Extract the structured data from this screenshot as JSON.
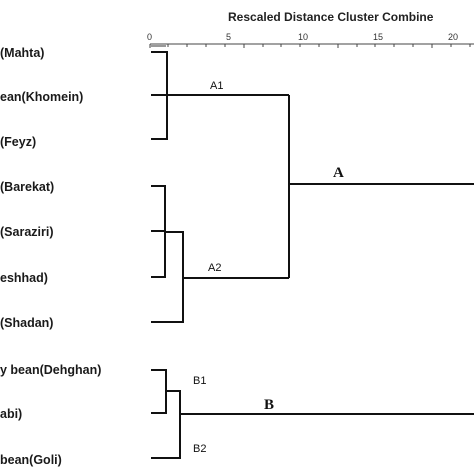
{
  "axis": {
    "title": "Rescaled Distance Cluster Combine",
    "ticks": [
      "0",
      "5",
      "10",
      "15",
      "20"
    ]
  },
  "leaves": [
    "(Mahta)",
    "ean(Khomein)",
    "(Feyz)",
    "(Barekat)",
    "(Saraziri)",
    "eshhad)",
    "(Shadan)",
    "y bean(Dehghan)",
    "abi)",
    "bean(Goli)"
  ],
  "clusters": {
    "A": "A",
    "A1": "A1",
    "A2": "A2",
    "B": "B",
    "B1": "B1",
    "B2": "B2"
  }
}
